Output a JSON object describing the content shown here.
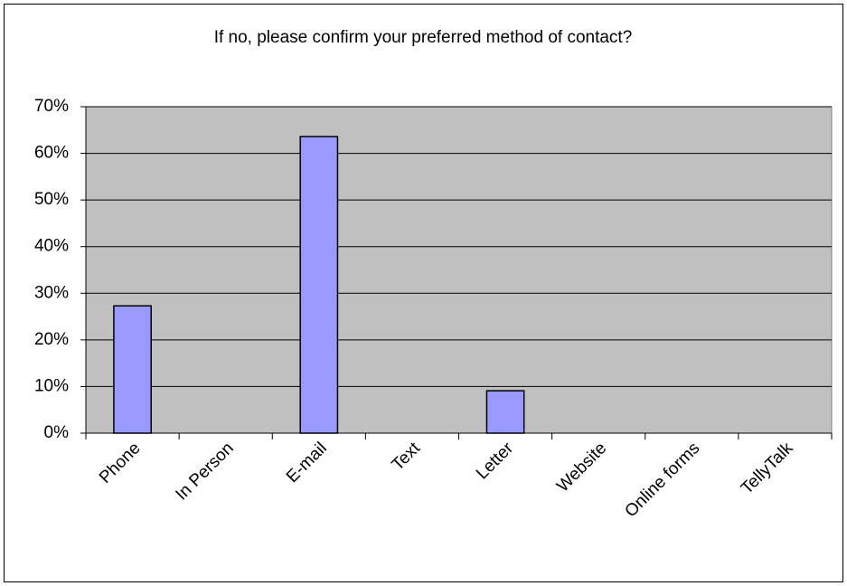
{
  "chart_data": {
    "type": "bar",
    "title": "If no, please confirm your preferred method of contact?",
    "categories": [
      "Phone",
      "In Person",
      "E-mail",
      "Text",
      "Letter",
      "Website",
      "Online forms",
      "TellyTalk"
    ],
    "values": [
      27.3,
      0,
      63.6,
      0,
      9.1,
      0,
      0,
      0
    ],
    "color": "#9999ff",
    "ylim": [
      0,
      70
    ],
    "yticks": [
      {
        "value": 0,
        "label": "0%"
      },
      {
        "value": 10,
        "label": "10%"
      },
      {
        "value": 20,
        "label": "20%"
      },
      {
        "value": 30,
        "label": "30%"
      },
      {
        "value": 40,
        "label": "40%"
      },
      {
        "value": 50,
        "label": "50%"
      },
      {
        "value": 60,
        "label": "60%"
      },
      {
        "value": 70,
        "label": "70%"
      }
    ],
    "grid": true
  }
}
